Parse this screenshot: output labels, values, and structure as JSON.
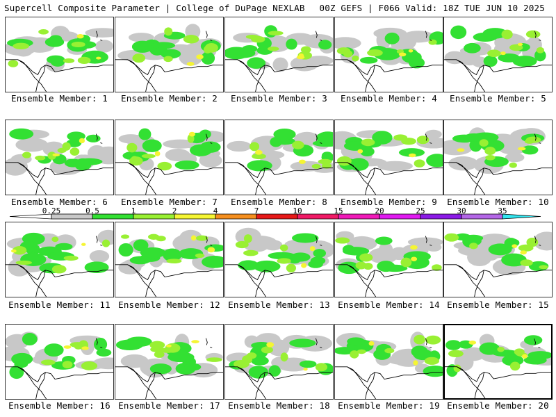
{
  "header": {
    "title": "Supercell Composite Parameter | College of DuPage NEXLAB",
    "run_info": "00Z GEFS | F066 Valid: 18Z TUE JUN 10 2025"
  },
  "legend": {
    "ticks": [
      "0.25",
      "0.5",
      "1",
      "2",
      "4",
      "7",
      "10",
      "15",
      "20",
      "25",
      "30",
      "35"
    ],
    "colors": [
      "#c8c8c8",
      "#33e033",
      "#99f033",
      "#f5f533",
      "#f58f1f",
      "#e61919",
      "#f01a66",
      "#f01ab8",
      "#e01af0",
      "#8b1ae6",
      "#b366e6",
      "#33e6f0"
    ]
  },
  "members": [
    {
      "caption": "Ensemble Member: 1",
      "selected": false
    },
    {
      "caption": "Ensemble Member: 2",
      "selected": false
    },
    {
      "caption": "Ensemble Member: 3",
      "selected": false
    },
    {
      "caption": "Ensemble Member: 4",
      "selected": false
    },
    {
      "caption": "Ensemble Member: 5",
      "selected": false
    },
    {
      "caption": "Ensemble Member: 6",
      "selected": false
    },
    {
      "caption": "Ensemble Member: 7",
      "selected": false
    },
    {
      "caption": "Ensemble Member: 8",
      "selected": false
    },
    {
      "caption": "Ensemble Member: 9",
      "selected": false
    },
    {
      "caption": "Ensemble Member: 10",
      "selected": false
    },
    {
      "caption": "Ensemble Member: 11",
      "selected": false
    },
    {
      "caption": "Ensemble Member: 12",
      "selected": false
    },
    {
      "caption": "Ensemble Member: 13",
      "selected": false
    },
    {
      "caption": "Ensemble Member: 14",
      "selected": false
    },
    {
      "caption": "Ensemble Member: 15",
      "selected": false
    },
    {
      "caption": "Ensemble Member: 16",
      "selected": false
    },
    {
      "caption": "Ensemble Member: 17",
      "selected": false
    },
    {
      "caption": "Ensemble Member: 18",
      "selected": false
    },
    {
      "caption": "Ensemble Member: 19",
      "selected": false
    },
    {
      "caption": "Ensemble Member: 20",
      "selected": true
    }
  ]
}
